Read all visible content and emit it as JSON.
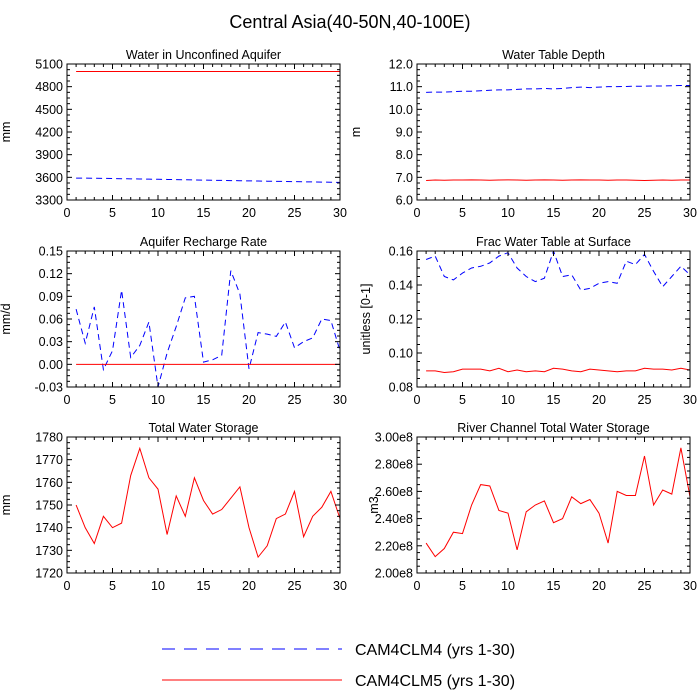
{
  "figure": {
    "title": "Central Asia(40-50N,40-100E)"
  },
  "colors": {
    "clm4": "#0000ff",
    "clm5": "#ff0000",
    "axis": "#000000"
  },
  "legend": [
    {
      "label": "CAM4CLM4 (yrs 1-30)",
      "style": "dashed",
      "color": "#0000ff"
    },
    {
      "label": "CAM4CLM5 (yrs 1-30)",
      "style": "solid",
      "color": "#ff0000"
    }
  ],
  "chart_data": [
    {
      "type": "line",
      "title": "Water in Unconfined Aquifer",
      "ylabel": "mm",
      "xlim": [
        0,
        30
      ],
      "ylim": [
        3300,
        5100
      ],
      "xticks": [
        0,
        5,
        10,
        15,
        20,
        25,
        30
      ],
      "yticks": [
        3300,
        3600,
        3900,
        4200,
        4500,
        4800,
        5100
      ],
      "ytick_labels": [
        "3300",
        "3600",
        "3900",
        "4200",
        "4500",
        "4800",
        "5100"
      ],
      "x": [
        1,
        2,
        3,
        4,
        5,
        6,
        7,
        8,
        9,
        10,
        11,
        12,
        13,
        14,
        15,
        16,
        17,
        18,
        19,
        20,
        21,
        22,
        23,
        24,
        25,
        26,
        27,
        28,
        29,
        30
      ],
      "series": [
        {
          "name": "CAM4CLM4 (yrs 1-30)",
          "style": "dashed",
          "values": [
            3590,
            3589,
            3588,
            3586,
            3584,
            3582,
            3580,
            3578,
            3576,
            3574,
            3572,
            3570,
            3568,
            3565,
            3563,
            3561,
            3559,
            3557,
            3555,
            3553,
            3551,
            3549,
            3547,
            3545,
            3543,
            3541,
            3539,
            3537,
            3535,
            3533
          ]
        },
        {
          "name": "CAM4CLM5 (yrs 1-30)",
          "style": "solid",
          "values": [
            5000,
            5000,
            5000,
            5000,
            5000,
            5000,
            5000,
            5000,
            5000,
            5000,
            5000,
            5000,
            5000,
            5000,
            5000,
            5000,
            5000,
            5000,
            5000,
            5000,
            5000,
            5000,
            5000,
            5000,
            5000,
            5000,
            5000,
            5000,
            5000,
            5000
          ]
        }
      ]
    },
    {
      "type": "line",
      "title": "Water Table Depth",
      "ylabel": "m",
      "xlim": [
        0,
        30
      ],
      "ylim": [
        6.0,
        12.0
      ],
      "xticks": [
        0,
        5,
        10,
        15,
        20,
        25,
        30
      ],
      "yticks": [
        6,
        7,
        8,
        9,
        10,
        11,
        12
      ],
      "ytick_labels": [
        "6.0",
        "7.0",
        "8.0",
        "9.0",
        "10.0",
        "11.0",
        "12.0"
      ],
      "x": [
        1,
        2,
        3,
        4,
        5,
        6,
        7,
        8,
        9,
        10,
        11,
        12,
        13,
        14,
        15,
        16,
        17,
        18,
        19,
        20,
        21,
        22,
        23,
        24,
        25,
        26,
        27,
        28,
        29,
        30
      ],
      "series": [
        {
          "name": "CAM4CLM4 (yrs 1-30)",
          "style": "dashed",
          "values": [
            10.75,
            10.76,
            10.76,
            10.78,
            10.8,
            10.8,
            10.82,
            10.84,
            10.86,
            10.86,
            10.88,
            10.9,
            10.9,
            10.92,
            10.9,
            10.92,
            10.96,
            10.98,
            10.96,
            10.98,
            11.0,
            11.0,
            11.01,
            11.02,
            11.02,
            11.03,
            11.03,
            11.04,
            11.05,
            11.05
          ]
        },
        {
          "name": "CAM4CLM5 (yrs 1-30)",
          "style": "solid",
          "values": [
            6.86,
            6.88,
            6.87,
            6.88,
            6.88,
            6.89,
            6.88,
            6.87,
            6.88,
            6.89,
            6.88,
            6.87,
            6.88,
            6.89,
            6.88,
            6.87,
            6.88,
            6.89,
            6.88,
            6.88,
            6.87,
            6.88,
            6.88,
            6.87,
            6.86,
            6.87,
            6.88,
            6.87,
            6.88,
            6.88
          ]
        }
      ]
    },
    {
      "type": "line",
      "title": "Aquifer Recharge Rate",
      "ylabel": "mm/d",
      "xlim": [
        0,
        30
      ],
      "ylim": [
        -0.03,
        0.15
      ],
      "xticks": [
        0,
        5,
        10,
        15,
        20,
        25,
        30
      ],
      "yticks": [
        -0.03,
        0,
        0.03,
        0.06,
        0.09,
        0.12,
        0.15
      ],
      "ytick_labels": [
        "-0.03",
        "0.00",
        "0.03",
        "0.06",
        "0.09",
        "0.12",
        "0.15"
      ],
      "x": [
        1,
        2,
        3,
        4,
        5,
        6,
        7,
        8,
        9,
        10,
        11,
        12,
        13,
        14,
        15,
        16,
        17,
        18,
        19,
        20,
        21,
        22,
        23,
        24,
        25,
        26,
        27,
        28,
        29,
        30
      ],
      "series": [
        {
          "name": "CAM4CLM4 (yrs 1-30)",
          "style": "dashed",
          "values": [
            0.073,
            0.028,
            0.076,
            -0.007,
            0.018,
            0.098,
            0.009,
            0.025,
            0.056,
            -0.03,
            0.015,
            0.05,
            0.088,
            0.09,
            0.003,
            0.006,
            0.012,
            0.124,
            0.093,
            -0.006,
            0.042,
            0.04,
            0.037,
            0.056,
            0.022,
            0.03,
            0.035,
            0.06,
            0.058,
            0.018
          ]
        },
        {
          "name": "CAM4CLM5 (yrs 1-30)",
          "style": "solid",
          "values": [
            0,
            0,
            0,
            0,
            0,
            0,
            0,
            0,
            0,
            0,
            0,
            0,
            0,
            0,
            0,
            0,
            0,
            0,
            0,
            0,
            0,
            0,
            0,
            0,
            0,
            0,
            0,
            0,
            0,
            0
          ]
        }
      ]
    },
    {
      "type": "line",
      "title": "Frac Water Table at Surface",
      "ylabel": "unitless [0-1]",
      "xlim": [
        0,
        30
      ],
      "ylim": [
        0.08,
        0.16
      ],
      "xticks": [
        0,
        5,
        10,
        15,
        20,
        25,
        30
      ],
      "yticks": [
        0.08,
        0.1,
        0.12,
        0.14,
        0.16
      ],
      "ytick_labels": [
        "0.08",
        "0.10",
        "0.12",
        "0.14",
        "0.16"
      ],
      "x": [
        1,
        2,
        3,
        4,
        5,
        6,
        7,
        8,
        9,
        10,
        11,
        12,
        13,
        14,
        15,
        16,
        17,
        18,
        19,
        20,
        21,
        22,
        23,
        24,
        25,
        26,
        27,
        28,
        29,
        30
      ],
      "series": [
        {
          "name": "CAM4CLM4 (yrs 1-30)",
          "style": "dashed",
          "values": [
            0.155,
            0.157,
            0.145,
            0.143,
            0.147,
            0.15,
            0.151,
            0.153,
            0.157,
            0.159,
            0.15,
            0.145,
            0.142,
            0.144,
            0.16,
            0.145,
            0.146,
            0.137,
            0.138,
            0.141,
            0.142,
            0.141,
            0.154,
            0.152,
            0.158,
            0.148,
            0.139,
            0.145,
            0.151,
            0.146
          ]
        },
        {
          "name": "CAM4CLM5 (yrs 1-30)",
          "style": "solid",
          "values": [
            0.0895,
            0.0895,
            0.0885,
            0.089,
            0.0905,
            0.0905,
            0.0905,
            0.0895,
            0.091,
            0.089,
            0.09,
            0.089,
            0.0895,
            0.089,
            0.091,
            0.0905,
            0.0895,
            0.089,
            0.0905,
            0.09,
            0.0895,
            0.089,
            0.0895,
            0.0895,
            0.091,
            0.0905,
            0.0905,
            0.09,
            0.091,
            0.09
          ]
        }
      ]
    },
    {
      "type": "line",
      "title": "Total Water Storage",
      "ylabel": "mm",
      "xlim": [
        0,
        30
      ],
      "ylim": [
        1720,
        1780
      ],
      "xticks": [
        0,
        5,
        10,
        15,
        20,
        25,
        30
      ],
      "yticks": [
        1720,
        1730,
        1740,
        1750,
        1760,
        1770,
        1780
      ],
      "ytick_labels": [
        "1720",
        "1730",
        "1740",
        "1750",
        "1760",
        "1770",
        "1780"
      ],
      "x": [
        1,
        2,
        3,
        4,
        5,
        6,
        7,
        8,
        9,
        10,
        11,
        12,
        13,
        14,
        15,
        16,
        17,
        18,
        19,
        20,
        21,
        22,
        23,
        24,
        25,
        26,
        27,
        28,
        29,
        30
      ],
      "series": [
        {
          "name": "CAM4CLM5 (yrs 1-30)",
          "style": "solid",
          "values": [
            1750,
            1740,
            1733,
            1745,
            1740,
            1742,
            1763,
            1775,
            1762,
            1757,
            1737,
            1754,
            1745,
            1762,
            1752,
            1746,
            1748,
            1753,
            1758,
            1740,
            1727,
            1732,
            1744,
            1746,
            1756,
            1736,
            1745,
            1749,
            1756,
            1744
          ]
        }
      ]
    },
    {
      "type": "line",
      "title": "River Channel Total Water Storage",
      "ylabel": "m3",
      "xlim": [
        0,
        30
      ],
      "ylim": [
        200000000,
        300000000
      ],
      "xticks": [
        0,
        5,
        10,
        15,
        20,
        25,
        30
      ],
      "yticks": [
        200000000,
        220000000,
        240000000,
        260000000,
        280000000,
        300000000
      ],
      "ytick_labels": [
        "2.00e8",
        "2.20e8",
        "2.40e8",
        "2.60e8",
        "2.80e8",
        "3.00e8"
      ],
      "x": [
        1,
        2,
        3,
        4,
        5,
        6,
        7,
        8,
        9,
        10,
        11,
        12,
        13,
        14,
        15,
        16,
        17,
        18,
        19,
        20,
        21,
        22,
        23,
        24,
        25,
        26,
        27,
        28,
        29,
        30
      ],
      "series": [
        {
          "name": "CAM4CLM5 (yrs 1-30)",
          "style": "solid",
          "values": [
            222000000,
            212000000,
            218000000,
            230000000,
            229000000,
            250000000,
            265000000,
            264000000,
            246000000,
            244000000,
            217000000,
            245000000,
            250000000,
            253000000,
            237000000,
            240000000,
            256000000,
            251000000,
            254000000,
            244000000,
            222000000,
            260000000,
            257000000,
            257000000,
            286000000,
            250000000,
            261000000,
            258000000,
            292000000,
            256000000
          ]
        }
      ]
    }
  ]
}
